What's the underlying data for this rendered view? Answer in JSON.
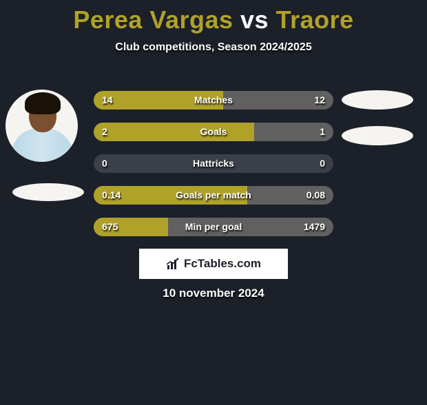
{
  "title_color": "#b0a229",
  "player_left": "Perea Vargas",
  "vs_word": "vs",
  "player_right": "Traore",
  "subtitle": "Club competitions, Season 2024/2025",
  "colors": {
    "left_bar": "#b0a229",
    "right_bar": "#606060",
    "track": "#3a3f48"
  },
  "stats": [
    {
      "label": "Matches",
      "left_val": "14",
      "right_val": "12",
      "left_pct": 54,
      "right_pct": 46
    },
    {
      "label": "Goals",
      "left_val": "2",
      "right_val": "1",
      "left_pct": 67,
      "right_pct": 33
    },
    {
      "label": "Hattricks",
      "left_val": "0",
      "right_val": "0",
      "left_pct": 0,
      "right_pct": 0
    },
    {
      "label": "Goals per match",
      "left_val": "0.14",
      "right_val": "0.08",
      "left_pct": 64,
      "right_pct": 36
    },
    {
      "label": "Min per goal",
      "left_val": "675",
      "right_val": "1479",
      "left_pct": 31,
      "right_pct": 69
    }
  ],
  "logo_text": "FcTables.com",
  "date": "10 november 2024"
}
